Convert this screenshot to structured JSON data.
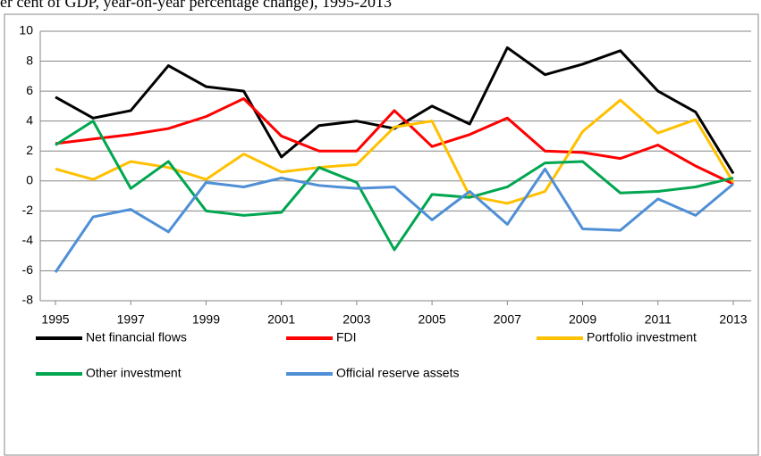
{
  "chart_data": {
    "type": "line",
    "title": "er cent of GDP, year-on-year percentage change), 1995-2013",
    "x": [
      1995,
      1996,
      1997,
      1998,
      1999,
      2000,
      2001,
      2002,
      2003,
      2004,
      2005,
      2006,
      2007,
      2008,
      2009,
      2010,
      2011,
      2012,
      2013
    ],
    "xlim": [
      1995,
      2013
    ],
    "xticks": [
      1995,
      1997,
      1999,
      2001,
      2003,
      2005,
      2007,
      2009,
      2011,
      2013
    ],
    "ylim": [
      -8,
      10
    ],
    "yticks": [
      -8,
      -6,
      -4,
      -2,
      0,
      2,
      4,
      6,
      8,
      10
    ],
    "grid": true,
    "legend": "bottom",
    "series": [
      {
        "name": "Net financial flows",
        "color": "#000000",
        "values": [
          5.6,
          4.2,
          4.7,
          7.7,
          6.3,
          6.0,
          1.6,
          3.7,
          4.0,
          3.5,
          5.0,
          3.8,
          8.9,
          7.1,
          7.8,
          8.7,
          6.0,
          4.6,
          0.5
        ]
      },
      {
        "name": "FDI",
        "color": "#ff0000",
        "values": [
          2.5,
          2.8,
          3.1,
          3.5,
          4.3,
          5.5,
          3.0,
          2.0,
          2.0,
          4.7,
          2.3,
          3.1,
          4.2,
          2.0,
          1.9,
          1.5,
          2.4,
          1.0,
          -0.2
        ]
      },
      {
        "name": "Portfolio investment",
        "color": "#ffc000",
        "values": [
          0.8,
          0.1,
          1.3,
          0.9,
          0.1,
          1.8,
          0.6,
          0.9,
          1.1,
          3.6,
          4.0,
          -1.0,
          -1.5,
          -0.7,
          3.3,
          5.4,
          3.2,
          4.1,
          -0.1
        ]
      },
      {
        "name": "Other investment",
        "color": "#00a650",
        "values": [
          2.4,
          4.0,
          -0.5,
          1.3,
          -2.0,
          -2.3,
          -2.1,
          0.9,
          -0.1,
          -4.6,
          -0.9,
          -1.1,
          -0.4,
          1.2,
          1.3,
          -0.8,
          -0.7,
          -0.4,
          0.2
        ]
      },
      {
        "name": "Official reserve assets",
        "color": "#4f8fd6",
        "values": [
          -6.1,
          -2.4,
          -1.9,
          -3.4,
          -0.1,
          -0.4,
          0.2,
          -0.3,
          -0.5,
          -0.4,
          -2.6,
          -0.7,
          -2.9,
          0.8,
          -3.2,
          -3.3,
          -1.2,
          -2.3,
          -0.2
        ]
      }
    ]
  }
}
